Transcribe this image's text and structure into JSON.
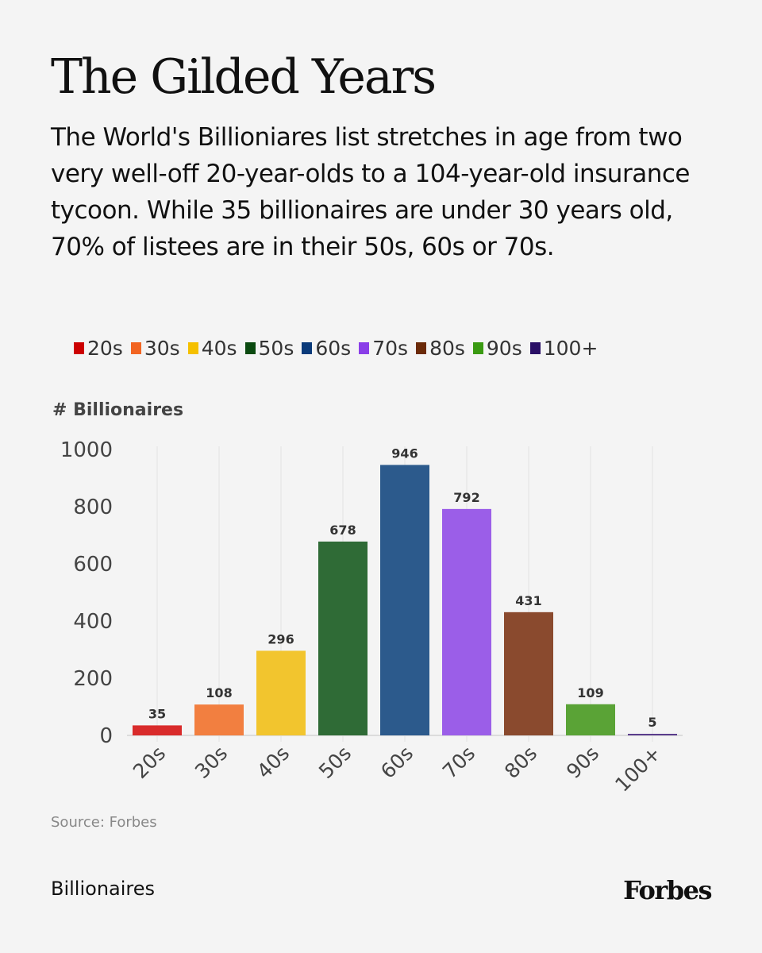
{
  "title": "The Gilded Years",
  "subtitle": "The World's Billioniares list stretches in age from two very well-off 20-year-olds to a 104-year-old insurance tycoon. While 35 billionaires are under 30 years old, 70% of listees are in their 50s, 60s or 70s.",
  "source": "Source: Forbes",
  "footer_section": "Billionaires",
  "logo": "Forbes",
  "chart_data": {
    "type": "bar",
    "ylabel": "# Billionaires",
    "xlabel": "",
    "categories": [
      "20s",
      "30s",
      "40s",
      "50s",
      "60s",
      "70s",
      "80s",
      "90s",
      "100+"
    ],
    "values": [
      35,
      108,
      296,
      678,
      946,
      792,
      431,
      109,
      5
    ],
    "ylim": [
      0,
      1000
    ],
    "yticks": [
      0,
      200,
      400,
      600,
      800,
      1000
    ],
    "grid": "vertical",
    "legend_position": "top",
    "bar_colors": [
      "#d92b2b",
      "#f27f40",
      "#f2c52e",
      "#2f6b36",
      "#2c5a8c",
      "#9b5ee8",
      "#8a4a2e",
      "#5aa336",
      "#5b3d8c"
    ],
    "legend_colors": [
      "#cc0000",
      "#f26522",
      "#f5c000",
      "#0b4a10",
      "#0a3a7a",
      "#8a3ee8",
      "#6b2a08",
      "#3a9a12",
      "#2a0f66"
    ]
  }
}
